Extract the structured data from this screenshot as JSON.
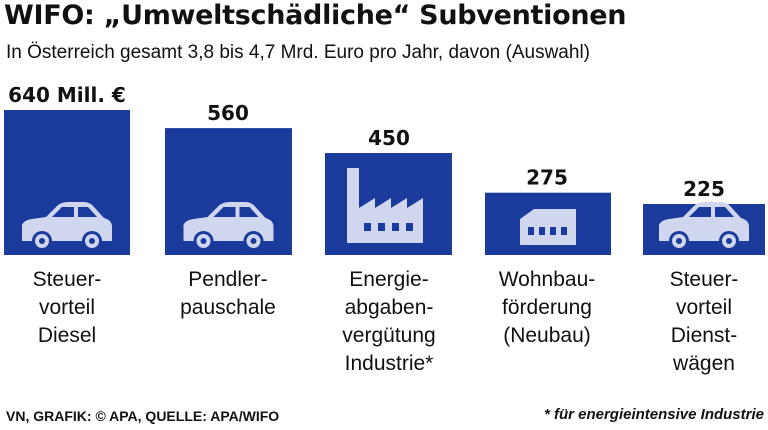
{
  "header": {
    "title": "WIFO: „Umweltschädliche“ Subventionen",
    "subtitle": "In Österreich gesamt 3,8 bis 4,7 Mrd. Euro pro Jahr, davon (Auswahl)"
  },
  "footer": {
    "source": "VN, GRAFIK: © APA, QUELLE: APA/WIFO",
    "note": "* für energieintensive Industrie"
  },
  "colors": {
    "bar": "#1a3a9c",
    "icon": "#cfd6ee",
    "text": "#111111"
  },
  "chart_data": {
    "type": "bar",
    "unit": "Mill. €",
    "categories": [
      [
        "Steuer-",
        "vorteil",
        "Diesel"
      ],
      [
        "Pendler-",
        "pauschale"
      ],
      [
        "Energie-",
        "abgaben-",
        "vergütung",
        "Industrie*"
      ],
      [
        "Wohnbau-",
        "förderung",
        "(Neubau)"
      ],
      [
        "Steuer-",
        "vorteil",
        "Dienst-",
        "wägen"
      ]
    ],
    "values": [
      640,
      560,
      450,
      275,
      225
    ],
    "value_labels": [
      "640 Mill. €",
      "560",
      "450",
      "275",
      "225"
    ],
    "icons": [
      "car-icon",
      "car-icon",
      "factory-icon",
      "house-icon",
      "car-icon"
    ]
  }
}
